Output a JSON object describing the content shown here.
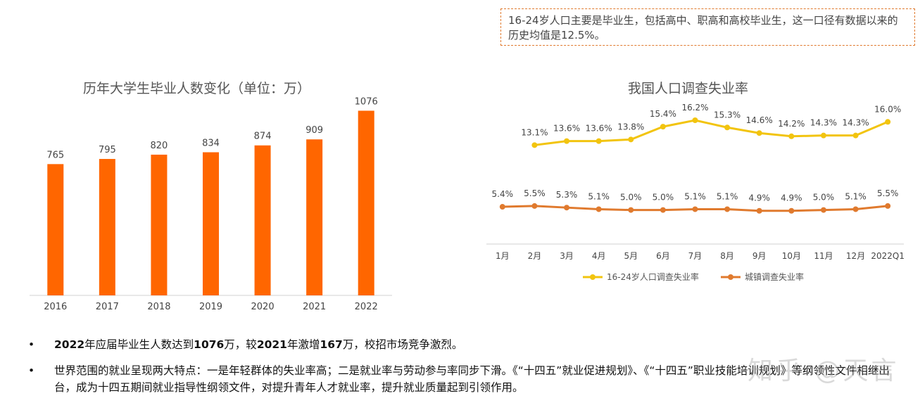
{
  "note": "16-24岁人口主要是毕业生，包括高中、职高和高校毕业生，这一口径有数据以来的历史均值是12.5%。",
  "watermark": "知乎 @天言",
  "colors": {
    "bar": "#ff6600",
    "youth_line": "#f2c40f",
    "urban_line": "#e07a2e"
  },
  "chart_data": [
    {
      "type": "bar",
      "title": "历年大学生毕业人数变化（单位：万）",
      "categories": [
        "2016",
        "2017",
        "2018",
        "2019",
        "2020",
        "2021",
        "2022"
      ],
      "values": [
        765,
        795,
        820,
        834,
        874,
        909,
        1076
      ],
      "ylim": [
        0,
        1250
      ],
      "grid": false,
      "xlabel": "",
      "ylabel": ""
    },
    {
      "type": "line",
      "title": "我国人口调查失业率",
      "categories": [
        "1月",
        "2月",
        "3月",
        "4月",
        "5月",
        "6月",
        "7月",
        "8月",
        "9月",
        "10月",
        "11月",
        "12月",
        "2022Q1"
      ],
      "series": [
        {
          "name": "16-24岁人口调查失业率",
          "values": [
            null,
            13.1,
            13.6,
            13.6,
            13.8,
            15.4,
            16.2,
            15.3,
            14.6,
            14.2,
            14.3,
            14.3,
            16.0
          ],
          "labels": [
            "",
            "13.1%",
            "13.6%",
            "13.6%",
            "13.8%",
            "15.4%",
            "16.2%",
            "15.3%",
            "14.6%",
            "14.2%",
            "14.3%",
            "14.3%",
            "16.0%"
          ]
        },
        {
          "name": "城镇调查失业率",
          "values": [
            5.4,
            5.5,
            5.3,
            5.1,
            5.0,
            5.0,
            5.1,
            5.1,
            4.9,
            4.9,
            5.0,
            5.1,
            5.5
          ],
          "labels": [
            "5.4%",
            "5.5%",
            "5.3%",
            "5.1%",
            "5.0%",
            "5.0%",
            "5.1%",
            "5.1%",
            "4.9%",
            "4.9%",
            "5.0%",
            "5.1%",
            "5.5%"
          ]
        }
      ],
      "legend": "bottom",
      "grid": false
    }
  ],
  "bullets": [
    {
      "symbol": "•",
      "parts": [
        {
          "text": "2022",
          "bold": true
        },
        {
          "text": "年应届毕业生人数达到",
          "bold": false
        },
        {
          "text": "1076",
          "bold": true
        },
        {
          "text": "万，较",
          "bold": false
        },
        {
          "text": "2021",
          "bold": true
        },
        {
          "text": "年激增",
          "bold": false
        },
        {
          "text": "167",
          "bold": true
        },
        {
          "text": "万，校招市场竞争激烈。",
          "bold": false
        }
      ]
    },
    {
      "symbol": "•",
      "parts": [
        {
          "text": "世界范围的就业呈现两大特点：一是年轻群体的失业率高；二是就业率与劳动参与率同步下滑。《“十四五”就业促进规划》、《“十四五”职业技能培训规划》等纲领性文件相继出台，成为十四五期间就业指导性纲领文件，对提升青年人才就业率，提升就业质量起到引领作用。",
          "bold": false
        }
      ]
    }
  ]
}
